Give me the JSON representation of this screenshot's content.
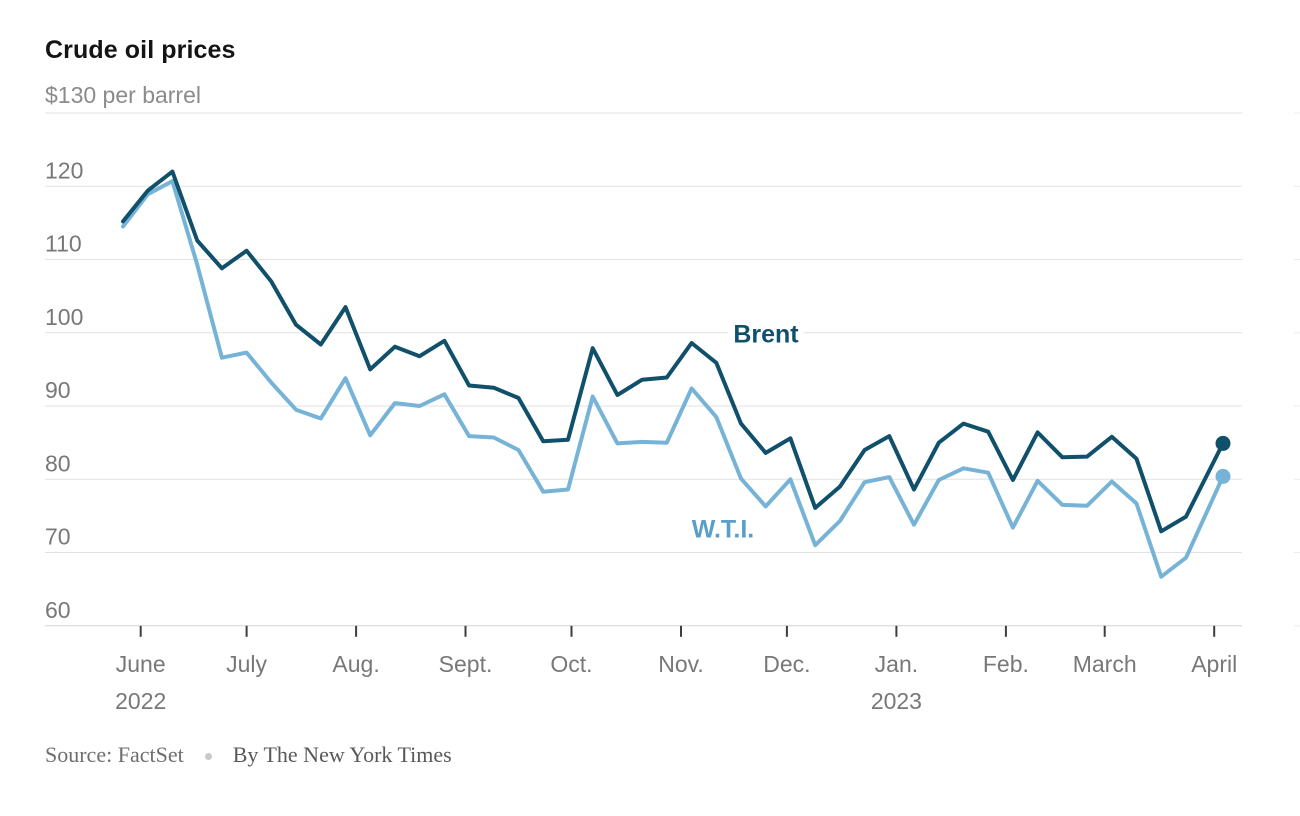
{
  "header": {
    "title": "Crude oil prices",
    "unit_label": "$130 per barrel"
  },
  "series_labels": {
    "brent": "Brent",
    "wti": "W.T.I."
  },
  "source": {
    "text": "Source: FactSet",
    "byline": "By The New York Times"
  },
  "colors": {
    "brent": "#11506b",
    "wti": "#76b3d6",
    "grid": "#e2e2e2",
    "axis": "#d4d4d4",
    "tick": "#3d3d3d",
    "axis_label": "#787878",
    "title": "#141414",
    "subtitle": "#8b8b8b",
    "background": "#ffffff"
  },
  "chart_data": {
    "type": "line",
    "title": "Crude oil prices",
    "ylabel": "$ per barrel",
    "ylim": [
      60,
      130
    ],
    "y_gridlines": [
      130,
      120,
      110,
      100,
      90,
      80,
      70,
      60
    ],
    "y_tick_labels": [
      120,
      110,
      100,
      90,
      80,
      70,
      60
    ],
    "grid": true,
    "legend_position": "inline-labels",
    "x_note": "weekly closes, late May 2022 to early April 2023; final week marked with a dot",
    "weeks": [
      0,
      1,
      2,
      3,
      4,
      5,
      6,
      7,
      8,
      9,
      10,
      11,
      12,
      13,
      14,
      15,
      16,
      17,
      18,
      19,
      20,
      21,
      22,
      23,
      24,
      25,
      26,
      27,
      28,
      29,
      30,
      31,
      32,
      33,
      34,
      35,
      36,
      37,
      38,
      39,
      40,
      41,
      42,
      43,
      44.5
    ],
    "series": [
      {
        "name": "Brent",
        "values": [
          115.2,
          119.4,
          122.0,
          112.6,
          108.8,
          111.2,
          107.0,
          101.1,
          98.4,
          103.5,
          95.0,
          98.1,
          96.8,
          98.9,
          92.8,
          92.5,
          91.1,
          85.2,
          85.4,
          97.9,
          91.5,
          93.6,
          93.9,
          98.6,
          95.9,
          87.6,
          83.6,
          85.6,
          76.1,
          79.0,
          84.0,
          85.9,
          78.6,
          85.0,
          87.6,
          86.5,
          79.9,
          86.4,
          83.0,
          83.1,
          85.8,
          82.8,
          72.9,
          74.9,
          84.9
        ]
      },
      {
        "name": "W.T.I.",
        "values": [
          114.5,
          118.9,
          120.7,
          109.3,
          96.6,
          97.3,
          93.2,
          89.5,
          88.3,
          93.8,
          86.0,
          90.4,
          90.0,
          91.6,
          85.9,
          85.7,
          84.0,
          78.3,
          78.6,
          91.3,
          84.9,
          85.1,
          85.0,
          92.4,
          88.5,
          80.1,
          76.3,
          80.0,
          71.0,
          74.3,
          79.6,
          80.3,
          73.8,
          79.9,
          81.5,
          80.9,
          73.4,
          79.8,
          76.5,
          76.4,
          79.7,
          76.7,
          66.7,
          69.3,
          80.4
        ]
      }
    ],
    "x_months": [
      {
        "label": "June",
        "days": 5,
        "year": "2022"
      },
      {
        "label": "July",
        "days": 35
      },
      {
        "label": "Aug.",
        "days": 66
      },
      {
        "label": "Sept.",
        "days": 97
      },
      {
        "label": "Oct.",
        "days": 127
      },
      {
        "label": "Nov.",
        "days": 158
      },
      {
        "label": "Dec.",
        "days": 188
      },
      {
        "label": "Jan.",
        "days": 219,
        "year": "2023"
      },
      {
        "label": "Feb.",
        "days": 250
      },
      {
        "label": "March",
        "days": 278
      },
      {
        "label": "April",
        "days": 309
      }
    ]
  }
}
